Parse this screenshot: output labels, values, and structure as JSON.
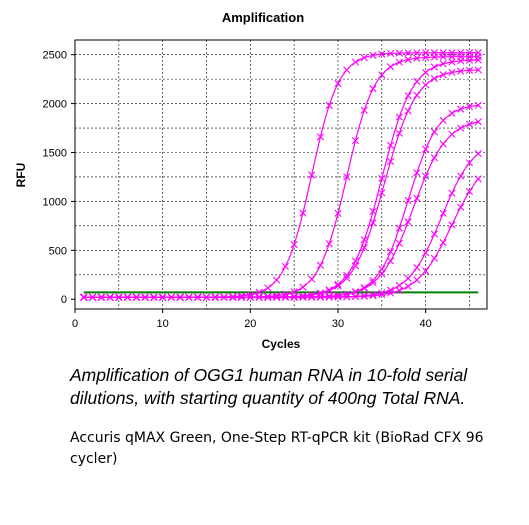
{
  "chart_data": {
    "type": "line",
    "title": "Amplification",
    "xlabel": "Cycles",
    "ylabel": "RFU",
    "xlim": [
      0,
      47
    ],
    "ylim": [
      -100,
      2650
    ],
    "x_ticks": [
      0,
      10,
      20,
      30,
      40
    ],
    "y_ticks": [
      0,
      500,
      1000,
      1500,
      2000,
      2500
    ],
    "grid": true,
    "legend": "none",
    "series_color": "#ff00ff",
    "baseline_color": "#008000",
    "series": [
      {
        "values": [
          {
            "x": 27,
            "y": 1250
          },
          {
            "x": 30,
            "y": 2150
          },
          {
            "x": 35,
            "y": 2480
          },
          {
            "x": 45,
            "y": 2520
          }
        ],
        "plateau": 2520,
        "midpoint": 27.0,
        "slope": 1.55
      },
      {
        "values": [
          {
            "x": 31,
            "y": 1230
          },
          {
            "x": 34,
            "y": 2050
          },
          {
            "x": 38,
            "y": 2400
          },
          {
            "x": 45,
            "y": 2480
          }
        ],
        "plateau": 2480,
        "midpoint": 31.0,
        "slope": 1.6
      },
      {
        "values": [
          {
            "x": 35,
            "y": 1220
          },
          {
            "x": 38,
            "y": 2000
          },
          {
            "x": 42,
            "y": 2320
          },
          {
            "x": 45,
            "y": 2420
          }
        ],
        "plateau": 2450,
        "midpoint": 35.0,
        "slope": 1.75
      },
      {
        "values": [
          {
            "x": 35.5,
            "y": 1200
          },
          {
            "x": 38,
            "y": 1950
          },
          {
            "x": 42,
            "y": 2250
          },
          {
            "x": 45,
            "y": 2330
          }
        ],
        "plateau": 2350,
        "midpoint": 35.3,
        "slope": 1.8
      },
      {
        "values": [
          {
            "x": 38,
            "y": 1000
          },
          {
            "x": 40,
            "y": 1550
          },
          {
            "x": 43,
            "y": 1850
          },
          {
            "x": 45,
            "y": 1960
          }
        ],
        "plateau": 2000,
        "midpoint": 38.0,
        "slope": 1.7
      },
      {
        "values": [
          {
            "x": 38.5,
            "y": 900
          },
          {
            "x": 41,
            "y": 1450
          },
          {
            "x": 43,
            "y": 1650
          },
          {
            "x": 45,
            "y": 1780
          }
        ],
        "plateau": 1850,
        "midpoint": 38.6,
        "slope": 1.9
      },
      {
        "values": [
          {
            "x": 41,
            "y": 650
          },
          {
            "x": 43,
            "y": 950
          },
          {
            "x": 45,
            "y": 1250
          }
        ],
        "plateau": 1650,
        "midpoint": 41.8,
        "slope": 1.9
      },
      {
        "values": [
          {
            "x": 42,
            "y": 500
          },
          {
            "x": 44,
            "y": 800
          },
          {
            "x": 45.5,
            "y": 1020
          }
        ],
        "plateau": 1500,
        "midpoint": 43.0,
        "slope": 2.0
      }
    ],
    "baseline": {
      "x_start": 1,
      "x_end": 46,
      "y": 70
    }
  },
  "caption": {
    "italic": "Amplification of OGG1 human RNA in 10-fold serial dilutions, with starting quantity of 400ng Total RNA.",
    "plain": "Accuris qMAX Green, One-Step RT-qPCR kit (BioRad CFX 96 cycler)"
  }
}
